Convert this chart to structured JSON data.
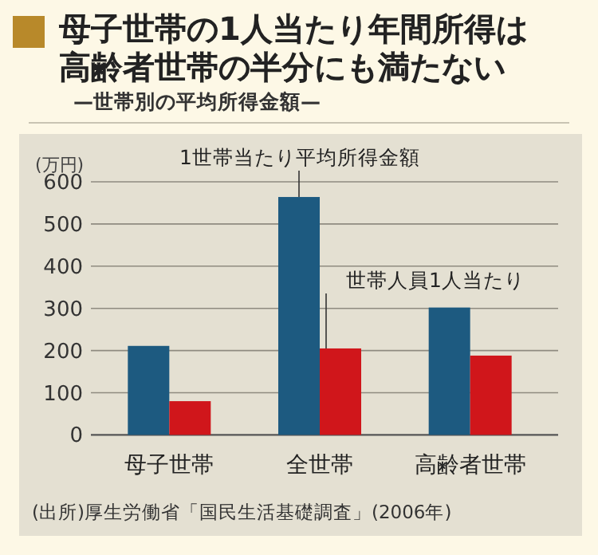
{
  "chart_data": {
    "type": "bar",
    "title": "母子世帯の1人当たり年間所得は高齢者世帯の半分にも満たない",
    "subtitle": "—世帯別の平均所得金額—",
    "ylabel": "(万円)",
    "categories": [
      "母子世帯",
      "全世帯",
      "高齢者世帯"
    ],
    "series": [
      {
        "name": "1世帯当たり平均所得金額",
        "color": "#1d5a80",
        "values": [
          211,
          564,
          302
        ]
      },
      {
        "name": "世帯人員1人当たり",
        "color": "#d0161b",
        "values": [
          80,
          205,
          188
        ]
      }
    ],
    "ylim": [
      0,
      600
    ],
    "yticks": [
      0,
      100,
      200,
      300,
      400,
      500,
      600
    ],
    "grid": "y",
    "annotations": [
      "(出所)厚生労働省「国民生活基礎調査」(2006年)"
    ]
  }
}
